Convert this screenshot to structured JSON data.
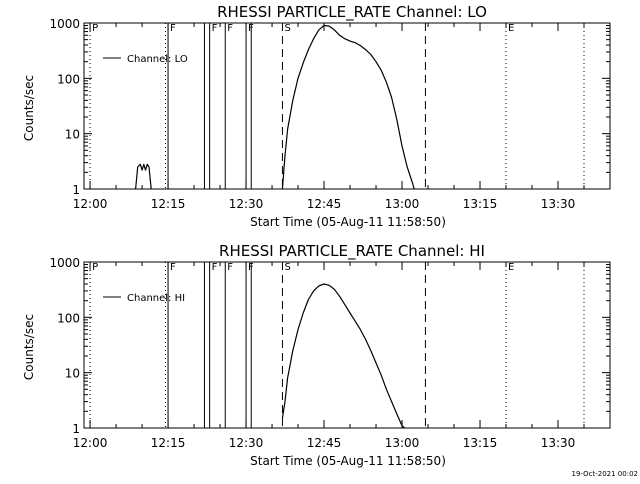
{
  "timestamp": "19-Oct-2021 00:02",
  "chart_data": [
    {
      "type": "line",
      "title": "RHESSI PARTICLE_RATE Channel: LO",
      "xlabel": "Start Time (05-Aug-11 11:58:50)",
      "ylabel": "Counts/sec",
      "y_scale": "log",
      "ylim": [
        1,
        1000
      ],
      "xlim": [
        "11:58:50",
        "13:40:00"
      ],
      "x_ticks": [
        "12:00",
        "12:15",
        "12:30",
        "12:45",
        "13:00",
        "13:15",
        "13:30"
      ],
      "y_ticks": [
        "1",
        "10",
        "100",
        "1000"
      ],
      "legend": {
        "position": "top-left",
        "entries": [
          "Channel: LO"
        ]
      },
      "event_markers": [
        {
          "time": "12:00:00",
          "label": "P",
          "style": "dotted"
        },
        {
          "time": "12:14:30",
          "label": "",
          "style": "dotted"
        },
        {
          "time": "12:15:00",
          "label": "F",
          "style": "solid"
        },
        {
          "time": "12:22:00",
          "label": "",
          "style": "solid"
        },
        {
          "time": "12:23:00",
          "label": "F",
          "style": "solid"
        },
        {
          "time": "12:26:00",
          "label": "F",
          "style": "solid"
        },
        {
          "time": "12:30:00",
          "label": "F",
          "style": "solid"
        },
        {
          "time": "12:31:00",
          "label": "",
          "style": "solid"
        },
        {
          "time": "12:37:00",
          "label": "S",
          "style": "dashed"
        },
        {
          "time": "13:04:30",
          "label": "",
          "style": "dashed"
        },
        {
          "time": "13:20:00",
          "label": "E",
          "style": "dotted"
        },
        {
          "time": "13:35:00",
          "label": "",
          "style": "dotted"
        }
      ],
      "series": [
        {
          "name": "Channel: LO",
          "segments": [
            {
              "x": [
                "12:08:45",
                "12:09:10",
                "12:09:40",
                "12:10:00",
                "12:10:20",
                "12:10:40",
                "12:11:00",
                "12:11:20",
                "12:11:45"
              ],
              "y": [
                1,
                2.5,
                2.8,
                2.2,
                2.8,
                2.2,
                2.8,
                2.5,
                1
              ]
            },
            {
              "x": [
                "12:37:00",
                "12:37:30",
                "12:38:00",
                "12:39:00",
                "12:40:00",
                "12:41:00",
                "12:42:00",
                "12:43:00",
                "12:44:00",
                "12:45:00",
                "12:46:00",
                "12:47:00",
                "12:48:00",
                "12:49:00",
                "12:50:00",
                "12:51:00",
                "12:52:00",
                "12:53:00",
                "12:54:00",
                "12:55:00",
                "12:56:00",
                "12:57:00",
                "12:58:00",
                "12:59:00",
                "13:00:00",
                "13:01:00",
                "13:02:00",
                "13:02:20"
              ],
              "y": [
                1,
                4,
                12,
                40,
                100,
                190,
                330,
                520,
                750,
                900,
                880,
                750,
                600,
                520,
                470,
                440,
                390,
                330,
                270,
                200,
                140,
                85,
                45,
                18,
                6,
                2.5,
                1.3,
                1
              ]
            }
          ]
        }
      ]
    },
    {
      "type": "line",
      "title": "RHESSI PARTICLE_RATE Channel: HI",
      "xlabel": "Start Time (05-Aug-11 11:58:50)",
      "ylabel": "Counts/sec",
      "y_scale": "log",
      "ylim": [
        1,
        1000
      ],
      "xlim": [
        "11:58:50",
        "13:40:00"
      ],
      "x_ticks": [
        "12:00",
        "12:15",
        "12:30",
        "12:45",
        "13:00",
        "13:15",
        "13:30"
      ],
      "y_ticks": [
        "1",
        "10",
        "100",
        "1000"
      ],
      "legend": {
        "position": "top-left",
        "entries": [
          "Channel: HI"
        ]
      },
      "event_markers": [
        {
          "time": "12:00:00",
          "label": "P",
          "style": "dotted"
        },
        {
          "time": "12:14:30",
          "label": "",
          "style": "dotted"
        },
        {
          "time": "12:15:00",
          "label": "F",
          "style": "solid"
        },
        {
          "time": "12:22:00",
          "label": "",
          "style": "solid"
        },
        {
          "time": "12:23:00",
          "label": "F",
          "style": "solid"
        },
        {
          "time": "12:26:00",
          "label": "F",
          "style": "solid"
        },
        {
          "time": "12:30:00",
          "label": "F",
          "style": "solid"
        },
        {
          "time": "12:31:00",
          "label": "",
          "style": "solid"
        },
        {
          "time": "12:37:00",
          "label": "S",
          "style": "dashed"
        },
        {
          "time": "13:04:30",
          "label": "",
          "style": "dashed"
        },
        {
          "time": "13:20:00",
          "label": "E",
          "style": "dotted"
        },
        {
          "time": "13:35:00",
          "label": "",
          "style": "dotted"
        }
      ],
      "series": [
        {
          "name": "Channel: HI",
          "segments": [
            {
              "x": [
                "12:37:00",
                "12:37:30",
                "12:38:00",
                "12:39:00",
                "12:40:00",
                "12:41:00",
                "12:42:00",
                "12:43:00",
                "12:44:00",
                "12:45:00",
                "12:46:00",
                "12:47:00",
                "12:48:00",
                "12:49:00",
                "12:50:00",
                "12:51:00",
                "12:52:00",
                "12:53:00",
                "12:54:00",
                "12:55:00",
                "12:56:00",
                "12:57:00",
                "12:58:00",
                "12:59:00",
                "13:00:00",
                "13:00:30"
              ],
              "y": [
                1.5,
                3,
                8,
                25,
                60,
                120,
                210,
                300,
                370,
                400,
                380,
                320,
                240,
                170,
                120,
                85,
                60,
                40,
                25,
                15,
                9,
                5,
                3,
                1.8,
                1.1,
                1
              ]
            }
          ]
        }
      ]
    }
  ]
}
